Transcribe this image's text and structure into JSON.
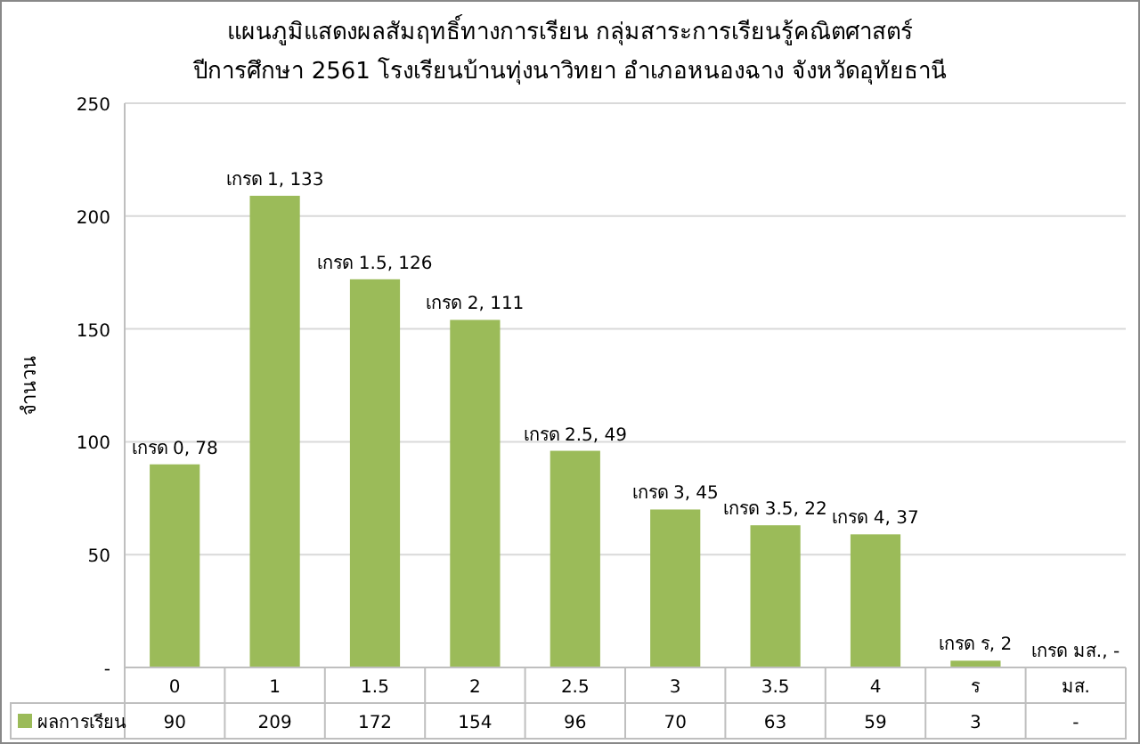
{
  "chart_data": {
    "type": "bar",
    "title": "แผนภูมิแสดงผลสัมฤทธิ์ทางการเรียน กลุ่มสาระการเรียนรู้คณิตศาสตร์",
    "subtitle": "ปีการศึกษา 2561   โรงเรียนบ้านทุ่งนาวิทยา อำเภอหนองฉาง จังหวัดอุทัยธานี",
    "ylabel": "จำนวน",
    "categories": [
      "0",
      "1",
      "1.5",
      "2",
      "2.5",
      "3",
      "3.5",
      "4",
      "ร",
      "มส."
    ],
    "series": [
      {
        "name": "ผลการเรียน",
        "color": "#9bbb59",
        "values": [
          90,
          209,
          172,
          154,
          96,
          70,
          63,
          59,
          3,
          null
        ],
        "value_labels": [
          "90",
          "209",
          "172",
          "154",
          "96",
          "70",
          "63",
          "59",
          "3",
          "-"
        ]
      }
    ],
    "annotations": [
      {
        "text": "เกรด 0,  78",
        "x": "0",
        "y": 90
      },
      {
        "text": "เกรด 1,  133",
        "x": "1",
        "y": 209
      },
      {
        "text": "เกรด 1.5,  126",
        "x": "1.5",
        "y": 172
      },
      {
        "text": "เกรด 2,  111",
        "x": "2",
        "y": 154
      },
      {
        "text": "เกรด 2.5,  49",
        "x": "2.5",
        "y": 96
      },
      {
        "text": "เกรด 3,  45",
        "x": "3",
        "y": 70
      },
      {
        "text": "เกรด 3.5,  22",
        "x": "3.5",
        "y": 63
      },
      {
        "text": "เกรด 4,  37",
        "x": "4",
        "y": 59
      },
      {
        "text": "เกรด ร,  2",
        "x": "ร",
        "y": 3
      },
      "เกรด มส.,  -"
    ],
    "ylim": [
      0,
      250
    ],
    "yticks": [
      {
        "value": 0,
        "label": "-"
      },
      50,
      100,
      150,
      200,
      250
    ],
    "grid": "y",
    "legend": "bottom"
  }
}
